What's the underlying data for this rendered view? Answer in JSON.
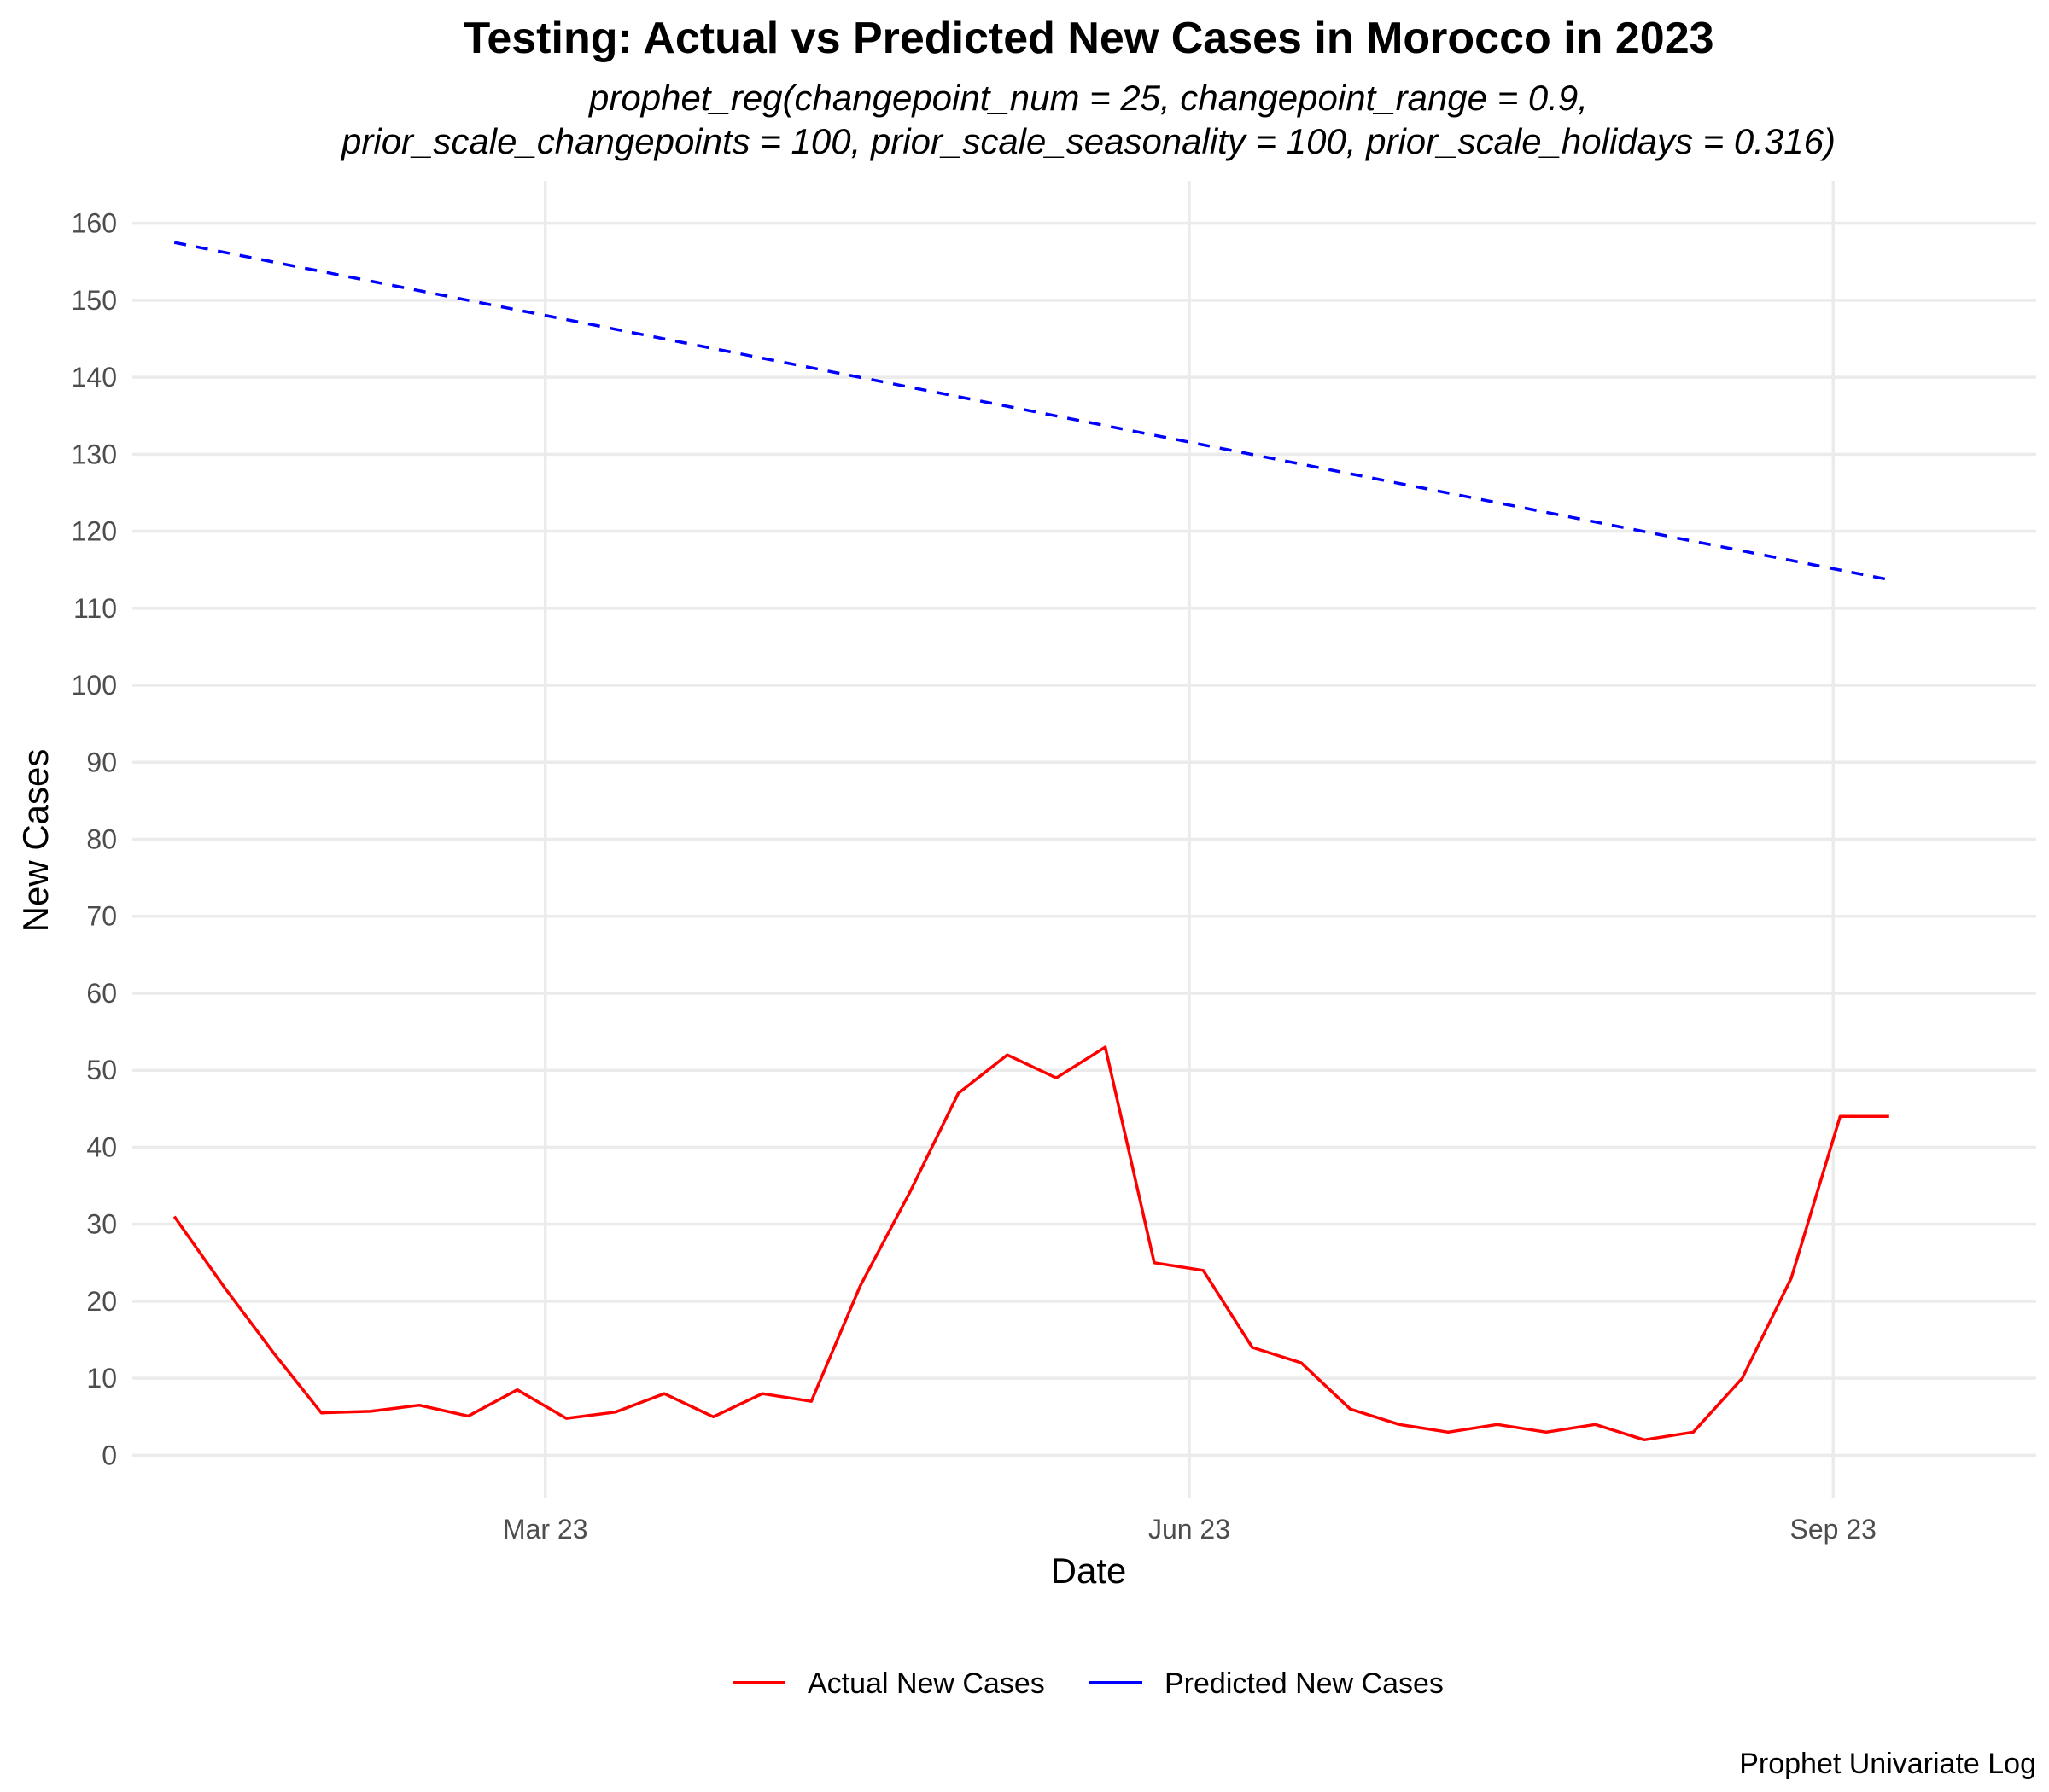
{
  "chart_data": {
    "type": "line",
    "title": "Testing: Actual vs Predicted New Cases in Morocco in 2023",
    "subtitle_lines": [
      "prophet_reg(changepoint_num = 25, changepoint_range = 0.9,",
      "prior_scale_changepoints = 100, prior_scale_seasonality = 100, prior_scale_holidays = 0.316)"
    ],
    "xlabel": "Date",
    "ylabel": "New Cases",
    "caption": "Prophet Univariate Log",
    "x_ticks": [
      {
        "date": "2023-03-01",
        "label": "Mar 23"
      },
      {
        "date": "2023-06-01",
        "label": "Jun 23"
      },
      {
        "date": "2023-09-01",
        "label": "Sep 23"
      }
    ],
    "y_ticks": [
      0,
      10,
      20,
      30,
      40,
      50,
      60,
      70,
      80,
      90,
      100,
      110,
      120,
      130,
      140,
      150,
      160
    ],
    "xlim": [
      "2023-01-01",
      "2023-09-30"
    ],
    "ylim": [
      -5.5,
      165.5
    ],
    "grid": true,
    "legend_position": "bottom",
    "series": [
      {
        "name": "Actual New Cases",
        "color": "#ff0000",
        "dash": "solid",
        "x": [
          "2023-01-07",
          "2023-01-14",
          "2023-01-21",
          "2023-01-28",
          "2023-02-04",
          "2023-02-11",
          "2023-02-18",
          "2023-02-25",
          "2023-03-04",
          "2023-03-11",
          "2023-03-18",
          "2023-03-25",
          "2023-04-01",
          "2023-04-08",
          "2023-04-15",
          "2023-04-22",
          "2023-04-29",
          "2023-05-06",
          "2023-05-13",
          "2023-05-20",
          "2023-05-27",
          "2023-06-03",
          "2023-06-10",
          "2023-06-17",
          "2023-06-24",
          "2023-07-01",
          "2023-07-08",
          "2023-07-15",
          "2023-07-22",
          "2023-07-29",
          "2023-08-05",
          "2023-08-12",
          "2023-08-19",
          "2023-08-26",
          "2023-09-02",
          "2023-09-09"
        ],
        "values": [
          31,
          22,
          13.5,
          5.5,
          5.7,
          6.5,
          5.1,
          8.5,
          4.8,
          5.6,
          8,
          5,
          8,
          7,
          22,
          34,
          47,
          52,
          49,
          53,
          25,
          24,
          14,
          12,
          6,
          4,
          3,
          4,
          3,
          4,
          2,
          3,
          10,
          23,
          44,
          44
        ]
      },
      {
        "name": "Predicted New Cases",
        "color": "#0000ff",
        "dash": "dashed",
        "x": [
          "2023-01-07",
          "2023-09-09"
        ],
        "values": [
          157.5,
          113.7
        ]
      }
    ]
  }
}
